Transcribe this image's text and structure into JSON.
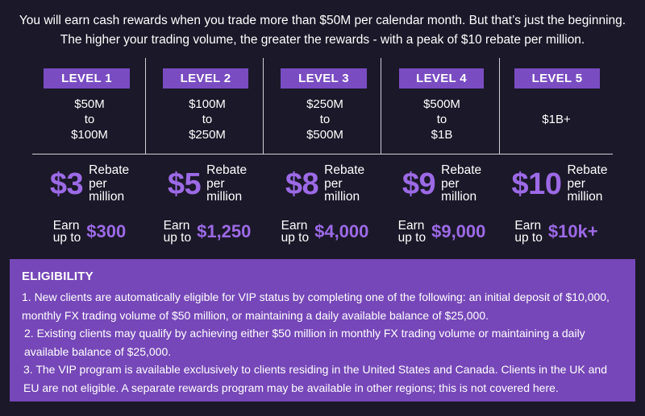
{
  "intro": {
    "line1": "You will earn cash rewards when you trade more than $50M per calendar month. But that’s just the beginning.",
    "line2": "The higher your trading volume, the greater the rewards - with a peak of $10 rebate per million."
  },
  "levels": [
    {
      "label": "LEVEL 1",
      "range": [
        "$50M",
        "to",
        "$100M"
      ],
      "rebate": "$3",
      "rebate_label": [
        "Rebate",
        "per",
        "million"
      ],
      "earn_label": [
        "Earn",
        "up to"
      ],
      "earn_amount": "$300"
    },
    {
      "label": "LEVEL 2",
      "range": [
        "$100M",
        "to",
        "$250M"
      ],
      "rebate": "$5",
      "rebate_label": [
        "Rebate",
        "per",
        "million"
      ],
      "earn_label": [
        "Earn",
        "up to"
      ],
      "earn_amount": "$1,250"
    },
    {
      "label": "LEVEL 3",
      "range": [
        "$250M",
        "to",
        "$500M"
      ],
      "rebate": "$8",
      "rebate_label": [
        "Rebate",
        "per",
        "million"
      ],
      "earn_label": [
        "Earn",
        "up to"
      ],
      "earn_amount": "$4,000"
    },
    {
      "label": "LEVEL 4",
      "range": [
        "$500M",
        "to",
        "$1B"
      ],
      "rebate": "$9",
      "rebate_label": [
        "Rebate",
        "per",
        "million"
      ],
      "earn_label": [
        "Earn",
        "up to"
      ],
      "earn_amount": "$9,000"
    },
    {
      "label": "LEVEL 5",
      "range": [
        "$1B+"
      ],
      "rebate": "$10",
      "rebate_label": [
        "Rebate",
        "per",
        "million"
      ],
      "earn_label": [
        "Earn",
        "up to"
      ],
      "earn_amount": "$10k+"
    }
  ],
  "eligibility": {
    "title": "ELIGIBILITY",
    "items": [
      "1.  New clients are automatically eligible for VIP status by completing one of the following: an initial deposit of $10,000, monthly FX trading volume of $50 million, or maintaining a daily available balance of $25,000.",
      "2. Existing clients may qualify by achieving either $50 million in monthly FX trading volume or maintaining a daily available balance of $25,000.",
      "3. The VIP program is available exclusively to clients residing in the United States and Canada. Clients in the UK and EU are not eligible. A separate rewards program may be available in other regions; this is not covered here."
    ]
  },
  "colors": {
    "background": "#1b1829",
    "accent": "#7a4cc2",
    "highlight": "#9c6ae6",
    "panel": "#7647b8"
  }
}
